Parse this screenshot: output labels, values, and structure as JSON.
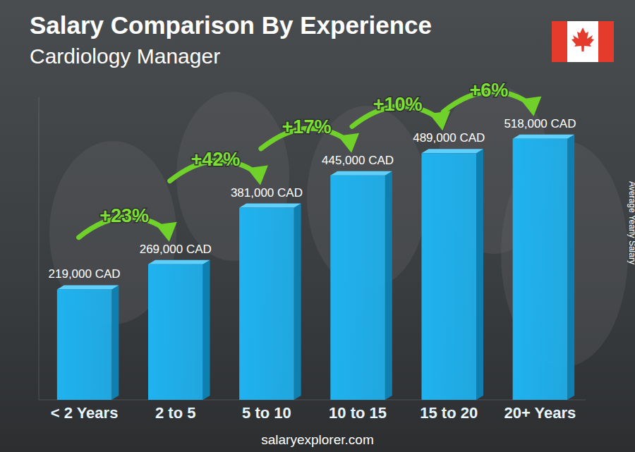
{
  "chart_data": {
    "type": "bar",
    "title": "Salary Comparison By Experience",
    "subtitle": "Cardiology Manager",
    "y_label": "Average Yearly Salary",
    "source": "salaryexplorer.com",
    "categories": [
      "< 2 Years",
      "2 to 5",
      "5 to 10",
      "10 to 15",
      "15 to 20",
      "20+ Years"
    ],
    "values": [
      219000,
      269000,
      381000,
      445000,
      489000,
      518000
    ],
    "value_labels": [
      "219,000 CAD",
      "269,000 CAD",
      "381,000 CAD",
      "445,000 CAD",
      "489,000 CAD",
      "518,000 CAD"
    ],
    "annotations": [
      "+23%",
      "+42%",
      "+17%",
      "+10%",
      "+6%"
    ],
    "color": "#1fb3f0",
    "ylim": [
      0,
      600000
    ],
    "yticks": [],
    "grid": false,
    "data_labels": true,
    "tick_labels": "x"
  }
}
